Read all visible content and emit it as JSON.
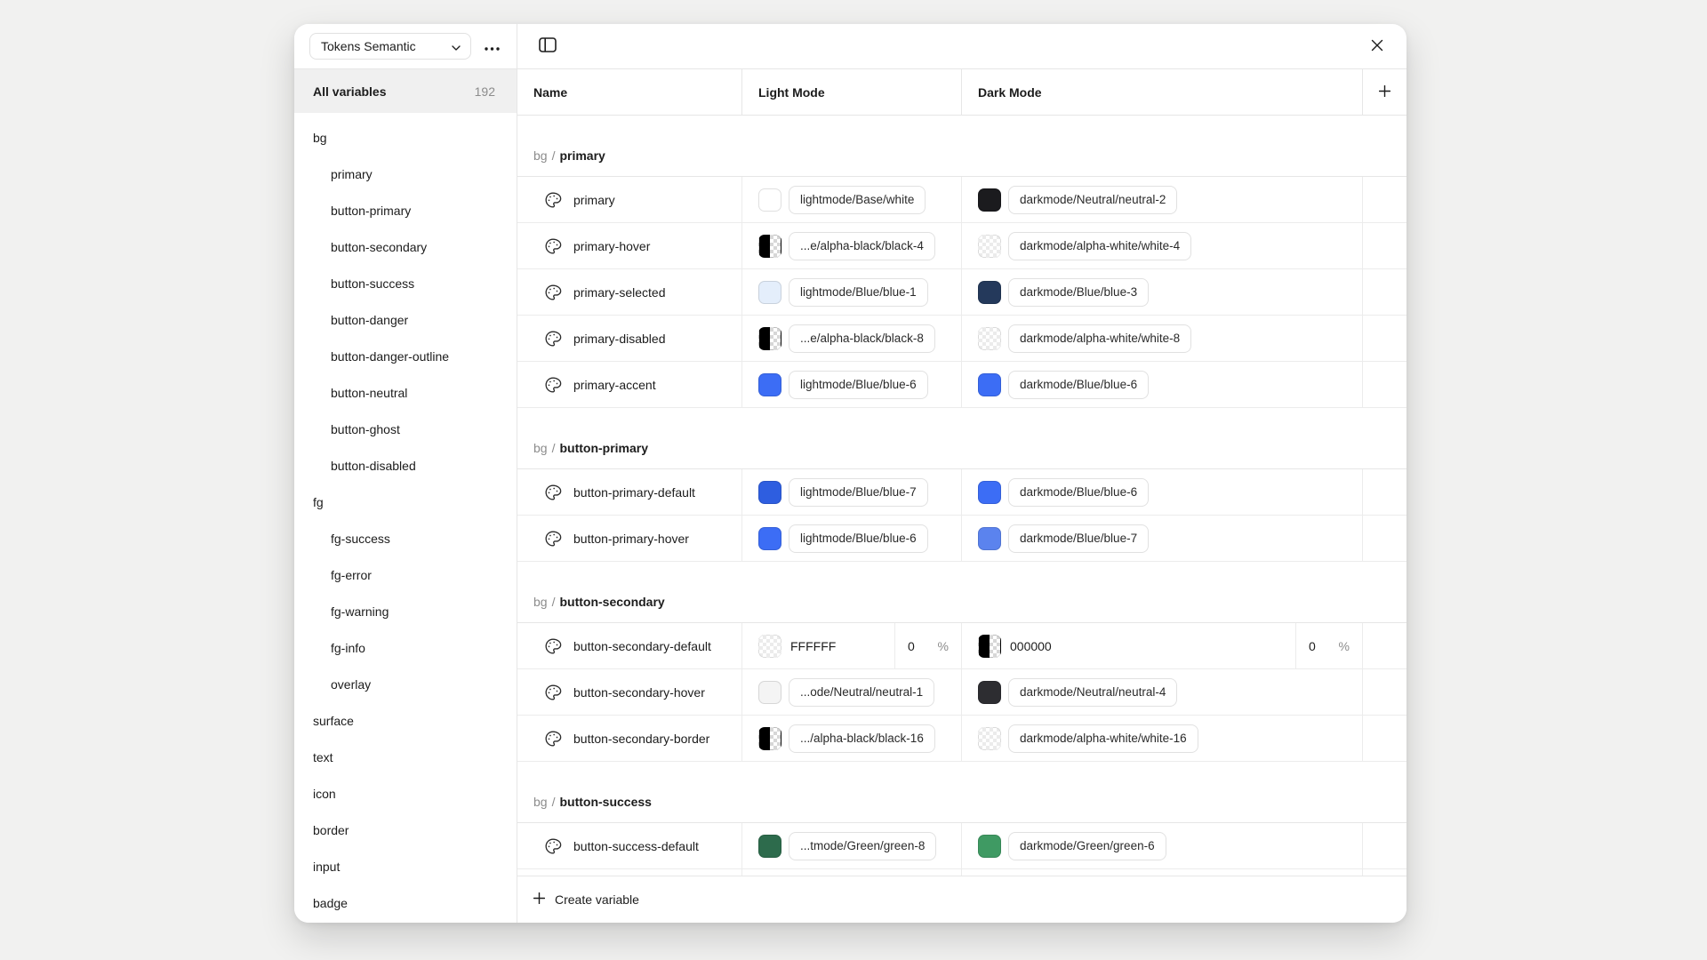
{
  "toolbar": {
    "collection_name": "Tokens Semantic"
  },
  "sidebar": {
    "all_variables_label": "All variables",
    "count": "192",
    "items": [
      {
        "label": "bg",
        "level": 1
      },
      {
        "label": "primary",
        "level": 2
      },
      {
        "label": "button-primary",
        "level": 2
      },
      {
        "label": "button-secondary",
        "level": 2
      },
      {
        "label": "button-success",
        "level": 2
      },
      {
        "label": "button-danger",
        "level": 2
      },
      {
        "label": "button-danger-outline",
        "level": 2
      },
      {
        "label": "button-neutral",
        "level": 2
      },
      {
        "label": "button-ghost",
        "level": 2
      },
      {
        "label": "button-disabled",
        "level": 2
      },
      {
        "label": "fg",
        "level": 1
      },
      {
        "label": "fg-success",
        "level": 2
      },
      {
        "label": "fg-error",
        "level": 2
      },
      {
        "label": "fg-warning",
        "level": 2
      },
      {
        "label": "fg-info",
        "level": 2
      },
      {
        "label": "overlay",
        "level": 2
      },
      {
        "label": "surface",
        "level": 1
      },
      {
        "label": "text",
        "level": 1
      },
      {
        "label": "icon",
        "level": 1
      },
      {
        "label": "border",
        "level": 1
      },
      {
        "label": "input",
        "level": 1
      },
      {
        "label": "badge",
        "level": 1
      }
    ]
  },
  "table": {
    "columns": [
      "Name",
      "Light Mode",
      "Dark Mode"
    ]
  },
  "sections": [
    {
      "group": "bg",
      "name": "primary",
      "rows": [
        {
          "name": "primary",
          "light": {
            "kind": "token",
            "swatch": "solid",
            "color": "#ffffff",
            "label": "lightmode/Base/white"
          },
          "dark": {
            "kind": "token",
            "swatch": "solid",
            "color": "#1b1b1e",
            "label": "darkmode/Neutral/neutral-2"
          }
        },
        {
          "name": "primary-hover",
          "light": {
            "kind": "token",
            "swatch": "alpha-black",
            "label": "...e/alpha-black/black-4"
          },
          "dark": {
            "kind": "token",
            "swatch": "alpha-white",
            "label": "darkmode/alpha-white/white-4"
          }
        },
        {
          "name": "primary-selected",
          "light": {
            "kind": "token",
            "swatch": "solid",
            "color": "#e4eefb",
            "label": "lightmode/Blue/blue-1"
          },
          "dark": {
            "kind": "token",
            "swatch": "solid",
            "color": "#24395b",
            "label": "darkmode/Blue/blue-3"
          }
        },
        {
          "name": "primary-disabled",
          "light": {
            "kind": "token",
            "swatch": "alpha-black",
            "label": "...e/alpha-black/black-8"
          },
          "dark": {
            "kind": "token",
            "swatch": "alpha-white",
            "label": "darkmode/alpha-white/white-8"
          }
        },
        {
          "name": "primary-accent",
          "light": {
            "kind": "token",
            "swatch": "solid",
            "color": "#3c6df5",
            "label": "lightmode/Blue/blue-6"
          },
          "dark": {
            "kind": "token",
            "swatch": "solid",
            "color": "#3c6df5",
            "label": "darkmode/Blue/blue-6"
          }
        }
      ]
    },
    {
      "group": "bg",
      "name": "button-primary",
      "rows": [
        {
          "name": "button-primary-default",
          "light": {
            "kind": "token",
            "swatch": "solid",
            "color": "#2e5ee0",
            "label": "lightmode/Blue/blue-7"
          },
          "dark": {
            "kind": "token",
            "swatch": "solid",
            "color": "#3c6df5",
            "label": "darkmode/Blue/blue-6"
          }
        },
        {
          "name": "button-primary-hover",
          "light": {
            "kind": "token",
            "swatch": "solid",
            "color": "#3c6df5",
            "label": "lightmode/Blue/blue-6"
          },
          "dark": {
            "kind": "token",
            "swatch": "solid",
            "color": "#5b83ee",
            "label": "darkmode/Blue/blue-7"
          }
        }
      ]
    },
    {
      "group": "bg",
      "name": "button-secondary",
      "rows": [
        {
          "name": "button-secondary-default",
          "light": {
            "kind": "hex",
            "swatch": "alpha-white",
            "hex": "FFFFFF",
            "opacity": "0",
            "unit": "%"
          },
          "dark": {
            "kind": "hex",
            "swatch": "alpha-black",
            "hex": "000000",
            "opacity": "0",
            "unit": "%"
          }
        },
        {
          "name": "button-secondary-hover",
          "light": {
            "kind": "token",
            "swatch": "solid",
            "color": "#f4f4f4",
            "label": "...ode/Neutral/neutral-1"
          },
          "dark": {
            "kind": "token",
            "swatch": "solid",
            "color": "#2d2d31",
            "label": "darkmode/Neutral/neutral-4"
          }
        },
        {
          "name": "button-secondary-border",
          "light": {
            "kind": "token",
            "swatch": "alpha-black",
            "label": ".../alpha-black/black-16"
          },
          "dark": {
            "kind": "token",
            "swatch": "alpha-white",
            "label": "darkmode/alpha-white/white-16"
          }
        }
      ]
    },
    {
      "group": "bg",
      "name": "button-success",
      "rows": [
        {
          "name": "button-success-default",
          "light": {
            "kind": "token",
            "swatch": "solid",
            "color": "#2d6b4c",
            "label": "...tmode/Green/green-8"
          },
          "dark": {
            "kind": "token",
            "swatch": "solid",
            "color": "#3f9a63",
            "label": "darkmode/Green/green-6"
          }
        }
      ]
    }
  ],
  "footer": {
    "create_label": "Create variable"
  }
}
